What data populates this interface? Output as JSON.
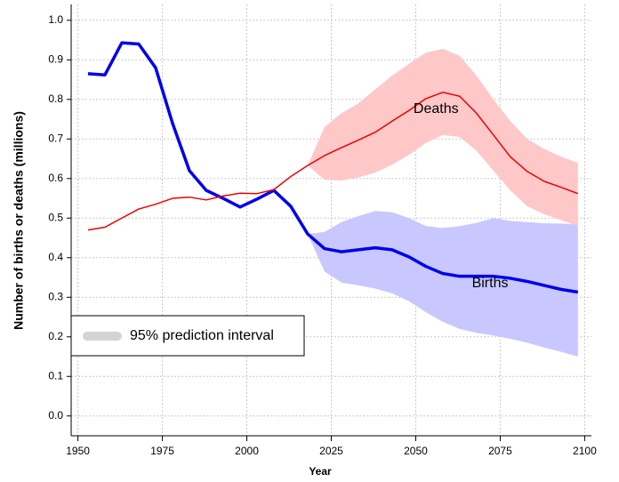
{
  "chart_data": {
    "type": "line",
    "x_label": "Year",
    "y_label": "Number of births or deaths (millions)",
    "x": [
      1953,
      1958,
      1963,
      1968,
      1973,
      1978,
      1983,
      1988,
      1993,
      1998,
      2003,
      2008,
      2013,
      2018,
      2023,
      2028,
      2033,
      2038,
      2043,
      2048,
      2053,
      2058,
      2063,
      2068,
      2073,
      2078,
      2083,
      2088,
      2093,
      2098
    ],
    "series": [
      {
        "name": "Births",
        "color": "#0000ee",
        "values": [
          0.865,
          0.862,
          0.943,
          0.94,
          0.88,
          0.74,
          0.62,
          0.57,
          0.55,
          0.528,
          0.548,
          0.57,
          0.53,
          0.46,
          0.423,
          0.415,
          0.42,
          0.425,
          0.42,
          0.402,
          0.378,
          0.36,
          0.353,
          0.353,
          0.353,
          0.348,
          0.34,
          0.33,
          0.32,
          0.313
        ]
      },
      {
        "name": "Deaths",
        "color": "#ee0000",
        "values": [
          0.47,
          0.477,
          0.5,
          0.523,
          0.535,
          0.55,
          0.553,
          0.546,
          0.556,
          0.563,
          0.562,
          0.572,
          0.605,
          0.633,
          0.658,
          0.678,
          0.697,
          0.717,
          0.745,
          0.772,
          0.802,
          0.818,
          0.808,
          0.765,
          0.71,
          0.655,
          0.618,
          0.593,
          0.578,
          0.562
        ]
      }
    ],
    "interval_label": "95% prediction interval",
    "interval_legend_color": "#d3d3d3",
    "intervals": [
      {
        "color": "#c8c8ff",
        "x": [
          2018,
          2023,
          2028,
          2033,
          2038,
          2043,
          2048,
          2053,
          2058,
          2063,
          2068,
          2073,
          2078,
          2083,
          2088,
          2093,
          2098
        ],
        "lower": [
          0.46,
          0.365,
          0.337,
          0.33,
          0.322,
          0.31,
          0.29,
          0.262,
          0.238,
          0.22,
          0.21,
          0.203,
          0.195,
          0.185,
          0.173,
          0.162,
          0.15
        ],
        "upper": [
          0.46,
          0.465,
          0.49,
          0.505,
          0.518,
          0.515,
          0.5,
          0.48,
          0.475,
          0.48,
          0.488,
          0.5,
          0.493,
          0.49,
          0.487,
          0.486,
          0.485
        ]
      },
      {
        "color": "#ffc8c8",
        "x": [
          2018,
          2023,
          2028,
          2033,
          2038,
          2043,
          2048,
          2053,
          2058,
          2063,
          2068,
          2073,
          2078,
          2083,
          2088,
          2093,
          2098
        ],
        "lower": [
          0.633,
          0.597,
          0.595,
          0.603,
          0.615,
          0.635,
          0.66,
          0.69,
          0.71,
          0.705,
          0.67,
          0.62,
          0.57,
          0.53,
          0.51,
          0.495,
          0.48
        ],
        "upper": [
          0.633,
          0.73,
          0.765,
          0.79,
          0.825,
          0.86,
          0.89,
          0.918,
          0.928,
          0.91,
          0.86,
          0.8,
          0.745,
          0.7,
          0.675,
          0.655,
          0.64
        ]
      }
    ],
    "xlim": [
      1948,
      2102
    ],
    "ylim": [
      -0.05,
      1.04
    ],
    "xticks": [
      1950,
      1975,
      2000,
      2025,
      2050,
      2075,
      2100
    ],
    "yticks": [
      {
        "value": 0,
        "label": "0.0"
      },
      0.1,
      0.2,
      0.3,
      0.4,
      0.5,
      0.6,
      0.7,
      0.8,
      0.9,
      {
        "value": 1,
        "label": "1.0"
      }
    ],
    "grid": true
  }
}
